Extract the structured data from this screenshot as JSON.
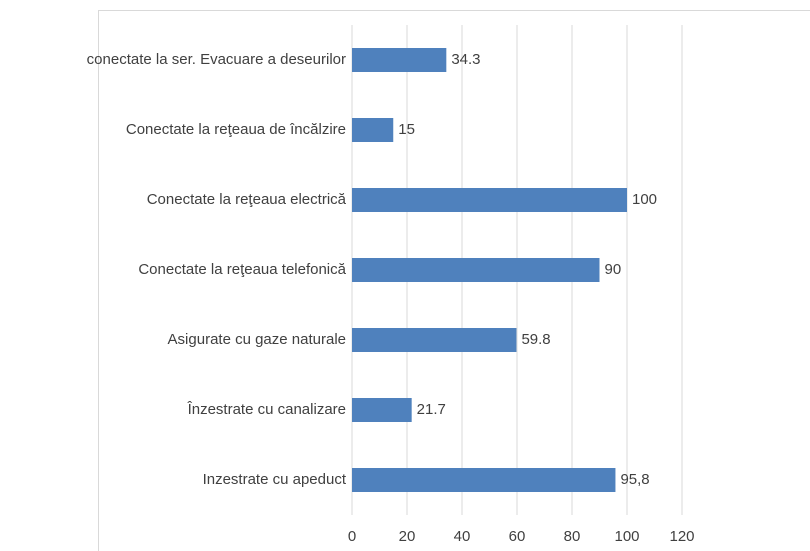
{
  "chart_data": {
    "type": "barh",
    "categories": [
      "conectate la ser. Evacuare a deseurilor",
      "Conectate la reţeaua de încălzire",
      "Conectate la reţeaua electrică",
      "Conectate la reţeaua telefonică",
      "Asigurate cu gaze naturale",
      "Înzestrate cu canalizare",
      "Inzestrate cu apeduct"
    ],
    "values": [
      34.3,
      15,
      100,
      90,
      59.8,
      21.7,
      95.8
    ],
    "value_labels": [
      "34.3",
      "15",
      "100",
      "90",
      "59.8",
      "21.7",
      "95,8"
    ],
    "color": "#4f81bd",
    "xlim": [
      0,
      120
    ],
    "xticks": [
      0,
      20,
      40,
      60,
      80,
      100,
      120
    ],
    "grid": true
  }
}
